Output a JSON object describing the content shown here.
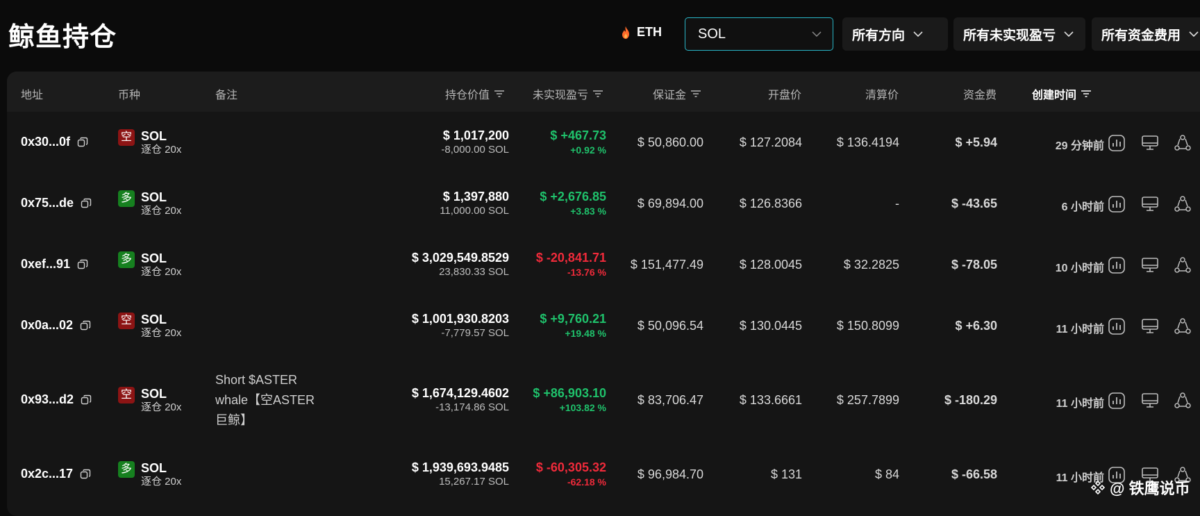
{
  "page": {
    "title": "鲸鱼持仓"
  },
  "filters": {
    "eth_label": "ETH",
    "search_value": "SOL",
    "direction": "所有方向",
    "pnl": "所有未实现盈亏",
    "funding": "所有资金费用"
  },
  "columns": {
    "address": "地址",
    "coin": "币种",
    "note": "备注",
    "value": "持仓价值",
    "pnl": "未实现盈亏",
    "margin": "保证金",
    "open_price": "开盘价",
    "liq_price": "清算价",
    "funding": "资金费",
    "created": "创建时间"
  },
  "rows": [
    {
      "address": "0x30...0f",
      "side": "空",
      "side_type": "short",
      "coin": "SOL",
      "leverage": "逐仓 20x",
      "note": "",
      "value": "$ 1,017,200",
      "size": "-8,000.00 SOL",
      "pnl": "$ +467.73",
      "pnl_pct": "+0.92 %",
      "pnl_sign": "pos",
      "margin": "$ 50,860.00",
      "open_price": "$ 127.2084",
      "liq_price": "$ 136.4194",
      "funding": "$ +5.94",
      "funding_sign": "pos",
      "created": "29 分钟前"
    },
    {
      "address": "0x75...de",
      "side": "多",
      "side_type": "long",
      "coin": "SOL",
      "leverage": "逐仓 20x",
      "note": "",
      "value": "$ 1,397,880",
      "size": "11,000.00 SOL",
      "pnl": "$ +2,676.85",
      "pnl_pct": "+3.83 %",
      "pnl_sign": "pos",
      "margin": "$ 69,894.00",
      "open_price": "$ 126.8366",
      "liq_price": "-",
      "funding": "$ -43.65",
      "funding_sign": "neg",
      "created": "6 小时前"
    },
    {
      "address": "0xef...91",
      "side": "多",
      "side_type": "long",
      "coin": "SOL",
      "leverage": "逐仓 20x",
      "note": "",
      "value": "$ 3,029,549.8529",
      "size": "23,830.33 SOL",
      "pnl": "$ -20,841.71",
      "pnl_pct": "-13.76 %",
      "pnl_sign": "neg",
      "margin": "$ 151,477.49",
      "open_price": "$ 128.0045",
      "liq_price": "$ 32.2825",
      "funding": "$ -78.05",
      "funding_sign": "neg",
      "created": "10 小时前"
    },
    {
      "address": "0x0a...02",
      "side": "空",
      "side_type": "short",
      "coin": "SOL",
      "leverage": "逐仓 20x",
      "note": "",
      "value": "$ 1,001,930.8203",
      "size": "-7,779.57 SOL",
      "pnl": "$ +9,760.21",
      "pnl_pct": "+19.48 %",
      "pnl_sign": "pos",
      "margin": "$ 50,096.54",
      "open_price": "$ 130.0445",
      "liq_price": "$ 150.8099",
      "funding": "$ +6.30",
      "funding_sign": "pos",
      "created": "11 小时前"
    },
    {
      "address": "0x93...d2",
      "side": "空",
      "side_type": "short",
      "coin": "SOL",
      "leverage": "逐仓 20x",
      "note": "Short $ASTER whale【空ASTER巨鲸】",
      "value": "$ 1,674,129.4602",
      "size": "-13,174.86 SOL",
      "pnl": "$ +86,903.10",
      "pnl_pct": "+103.82 %",
      "pnl_sign": "pos",
      "margin": "$ 83,706.47",
      "open_price": "$ 133.6661",
      "liq_price": "$ 257.7899",
      "funding": "$ -180.29",
      "funding_sign": "neg",
      "created": "11 小时前"
    },
    {
      "address": "0x2c...17",
      "side": "多",
      "side_type": "long",
      "coin": "SOL",
      "leverage": "逐仓 20x",
      "note": "",
      "value": "$ 1,939,693.9485",
      "size": "15,267.17 SOL",
      "pnl": "$ -60,305.32",
      "pnl_pct": "-62.18 %",
      "pnl_sign": "neg",
      "margin": "$ 96,984.70",
      "open_price": "$ 131",
      "liq_price": "$ 84",
      "funding": "$ -66.58",
      "funding_sign": "neg",
      "created": "11 小时前"
    }
  ],
  "watermark": "@ 铁鹰说币",
  "colors": {
    "positive": "#1fc16b",
    "negative": "#ef2a3a",
    "accent": "#29b6c8",
    "short_badge": "#8c1414",
    "long_badge": "#16801f"
  }
}
